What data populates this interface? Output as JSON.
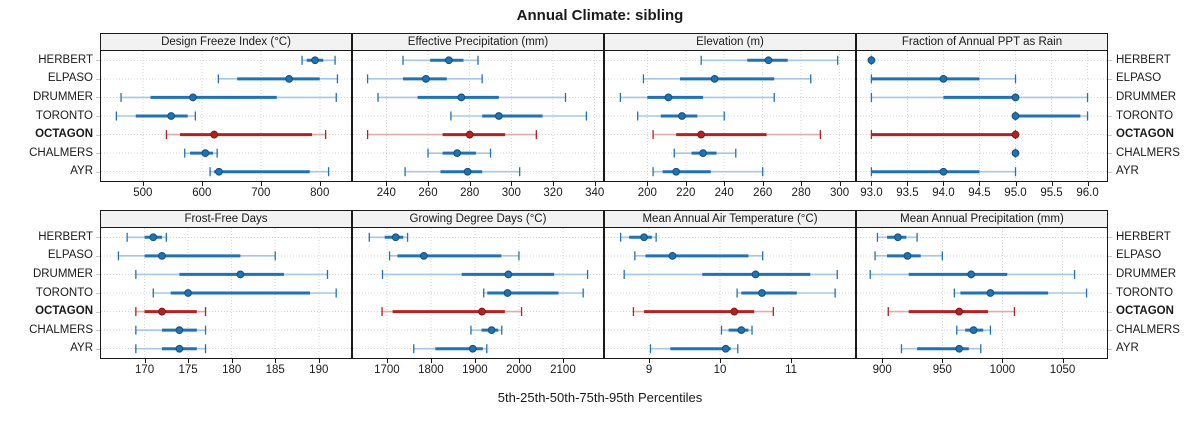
{
  "title": "Annual Climate: sibling",
  "caption": "5th-25th-50th-75th-95th Percentiles",
  "sites_top_to_bottom": [
    "HERBERT",
    "ELPASO",
    "DRUMMER",
    "TORONTO",
    "OCTAGON",
    "CHALMERS",
    "AYR"
  ],
  "highlight_site": "OCTAGON",
  "colors": {
    "series_solid": "#2171B5",
    "series_light": "#A6C8E4",
    "series_point_edge": "#12507B",
    "highlight_solid": "#B22222",
    "highlight_light": "#E0ACAC",
    "highlight_point_edge": "#801717",
    "grid": "#D6D6D6",
    "panel_border": "#1A1A1A",
    "strip_bg": "#F2F2F2",
    "text": "#1A1A1A"
  },
  "chart_data": {
    "type": "dotplot-percentiles",
    "percentile_levels": [
      5,
      25,
      50,
      75,
      95
    ],
    "layout_hint": "2 rows x 4 columns trellis, site labels left and right, x-ticks below each row, dotted grid",
    "panels": [
      {
        "id": "design-freeze-index",
        "title": "Design Freeze Index (°C)",
        "xlim": [
          429,
          853
        ],
        "ticks": [
          500,
          600,
          700,
          800
        ],
        "tick_labels": [
          "500",
          "600",
          "700",
          "800"
        ],
        "series": {
          "HERBERT": [
            770,
            778,
            792,
            806,
            826
          ],
          "ELPASO": [
            628,
            660,
            748,
            800,
            830
          ],
          "DRUMMER": [
            463,
            513,
            585,
            727,
            828
          ],
          "TORONTO": [
            455,
            488,
            548,
            576,
            589
          ],
          "OCTAGON": [
            540,
            563,
            621,
            787,
            810
          ],
          "CHALMERS": [
            571,
            580,
            606,
            619,
            626
          ],
          "AYR": [
            614,
            621,
            629,
            783,
            815
          ]
        }
      },
      {
        "id": "effective-precipitation",
        "title": "Effective Precipitation (mm)",
        "xlim": [
          224,
          344
        ],
        "ticks": [
          240,
          260,
          280,
          300,
          320,
          340
        ],
        "tick_labels": [
          "240",
          "260",
          "280",
          "300",
          "320",
          "340"
        ],
        "series": {
          "HERBERT": [
            248,
            261,
            270,
            277,
            284
          ],
          "ELPASO": [
            231,
            248,
            259,
            269,
            286
          ],
          "DRUMMER": [
            236,
            255,
            276,
            294,
            326
          ],
          "TORONTO": [
            271,
            286,
            294,
            315,
            336
          ],
          "OCTAGON": [
            231,
            267,
            280,
            297,
            312
          ],
          "CHALMERS": [
            260,
            267,
            274,
            283,
            290
          ],
          "AYR": [
            249,
            266,
            279,
            286,
            304
          ]
        }
      },
      {
        "id": "elevation",
        "title": "Elevation (m)",
        "xlim": [
          178,
          308
        ],
        "ticks": [
          200,
          220,
          240,
          260,
          280,
          300
        ],
        "tick_labels": [
          "200",
          "220",
          "240",
          "260",
          "280",
          "300"
        ],
        "series": {
          "HERBERT": [
            228,
            252,
            263,
            273,
            299
          ],
          "ELPASO": [
            198,
            217,
            235,
            266,
            285
          ],
          "DRUMMER": [
            186,
            200,
            211,
            229,
            266
          ],
          "TORONTO": [
            195,
            207,
            218,
            226,
            240
          ],
          "OCTAGON": [
            203,
            215,
            228,
            262,
            290
          ],
          "CHALMERS": [
            214,
            223,
            229,
            236,
            246
          ],
          "AYR": [
            203,
            208,
            215,
            233,
            260
          ]
        }
      },
      {
        "id": "fraction-ppt-rain",
        "title": "Fraction of Annual PPT as Rain",
        "xlim": [
          92.8,
          96.27
        ],
        "ticks": [
          93,
          93.5,
          94,
          94.5,
          95,
          95.5,
          96
        ],
        "tick_labels": [
          "93.0",
          "93.5",
          "94.0",
          "94.5",
          "95.0",
          "95.5",
          "96.0"
        ],
        "series": {
          "HERBERT": [
            93,
            93,
            93,
            93,
            93
          ],
          "ELPASO": [
            93,
            93,
            94,
            94.5,
            95
          ],
          "DRUMMER": [
            93,
            94,
            95,
            95,
            96
          ],
          "TORONTO": [
            95,
            95,
            95,
            95.9,
            96
          ],
          "OCTAGON": [
            93,
            93,
            95,
            95,
            95
          ],
          "CHALMERS": [
            95,
            95,
            95,
            95,
            95
          ],
          "AYR": [
            93,
            93,
            94,
            94.5,
            95
          ]
        }
      },
      {
        "id": "frost-free-days",
        "title": "Frost-Free Days",
        "xlim": [
          165,
          193.7
        ],
        "ticks": [
          170,
          175,
          180,
          185,
          190
        ],
        "tick_labels": [
          "170",
          "175",
          "180",
          "185",
          "190"
        ],
        "series": {
          "HERBERT": [
            168,
            170,
            171,
            172,
            172.5
          ],
          "ELPASO": [
            167,
            170,
            172,
            181,
            185
          ],
          "DRUMMER": [
            169,
            174,
            181,
            186,
            191
          ],
          "TORONTO": [
            171,
            173,
            175,
            189,
            192
          ],
          "OCTAGON": [
            169,
            170,
            172,
            176,
            177
          ],
          "CHALMERS": [
            169,
            172,
            174,
            176,
            177
          ],
          "AYR": [
            169,
            172,
            174,
            176,
            177
          ]
        }
      },
      {
        "id": "growing-degree-days",
        "title": "Growing Degree Days (°C)",
        "xlim": [
          1623,
          2191
        ],
        "ticks": [
          1700,
          1800,
          1900,
          2000,
          2100
        ],
        "tick_labels": [
          "1700",
          "1800",
          "1900",
          "2000",
          "2100"
        ],
        "series": {
          "HERBERT": [
            1660,
            1695,
            1720,
            1737,
            1747
          ],
          "ELPASO": [
            1706,
            1724,
            1784,
            1960,
            2000
          ],
          "DRUMMER": [
            1690,
            1870,
            1976,
            2080,
            2156
          ],
          "TORONTO": [
            1920,
            1928,
            1974,
            2090,
            2146
          ],
          "OCTAGON": [
            1689,
            1713,
            1916,
            1968,
            2006
          ],
          "CHALMERS": [
            1891,
            1915,
            1938,
            1953,
            1961
          ],
          "AYR": [
            1761,
            1810,
            1895,
            1918,
            1927
          ]
        }
      },
      {
        "id": "mean-annual-air-temperature",
        "title": "Mean Annual Air Temperature (°C)",
        "xlim": [
          8.38,
          11.9
        ],
        "ticks": [
          9,
          10,
          11
        ],
        "tick_labels": [
          "9",
          "10",
          "11"
        ],
        "series": {
          "HERBERT": [
            8.6,
            8.72,
            8.93,
            9.04,
            9.1
          ],
          "ELPASO": [
            8.8,
            8.95,
            9.33,
            10.4,
            10.6
          ],
          "DRUMMER": [
            8.65,
            9.75,
            10.5,
            11.27,
            11.65
          ],
          "TORONTO": [
            10.24,
            10.3,
            10.59,
            11.08,
            11.62
          ],
          "OCTAGON": [
            8.78,
            8.93,
            10.2,
            10.48,
            10.75
          ],
          "CHALMERS": [
            10.02,
            10.12,
            10.3,
            10.4,
            10.45
          ],
          "AYR": [
            9.02,
            9.3,
            10.08,
            10.15,
            10.25
          ]
        }
      },
      {
        "id": "mean-annual-precipitation",
        "title": "Mean Annual Precipitation (mm)",
        "xlim": [
          879,
          1087
        ],
        "ticks": [
          900,
          950,
          1000,
          1050
        ],
        "tick_labels": [
          "900",
          "950",
          "1000",
          "1050"
        ],
        "series": {
          "HERBERT": [
            896,
            904,
            913,
            920,
            929
          ],
          "ELPASO": [
            894,
            904,
            921,
            932,
            950
          ],
          "DRUMMER": [
            890,
            922,
            974,
            1004,
            1060
          ],
          "TORONTO": [
            960,
            965,
            990,
            1038,
            1070
          ],
          "OCTAGON": [
            905,
            922,
            964,
            988,
            1010
          ],
          "CHALMERS": [
            962,
            969,
            976,
            984,
            990
          ],
          "AYR": [
            916,
            929,
            964,
            972,
            982
          ]
        }
      }
    ]
  }
}
